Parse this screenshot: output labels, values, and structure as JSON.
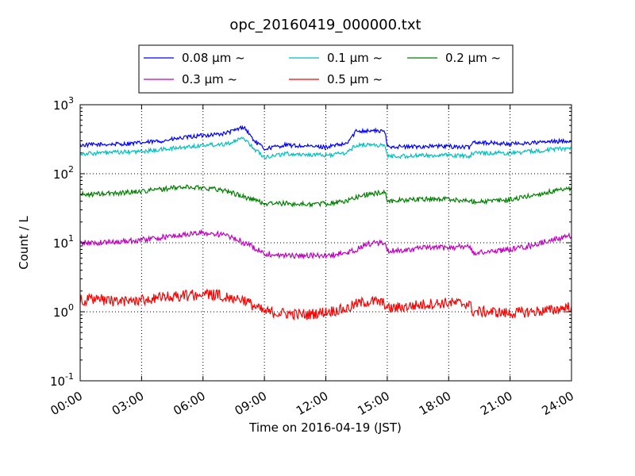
{
  "chart_data": {
    "type": "line",
    "title": "opc_20160419_000000.txt",
    "xlabel": "Time on 2016-04-19 (JST)",
    "ylabel": "Count / L",
    "yscale": "log",
    "ylim": [
      0.1,
      1000
    ],
    "xlim_hours": [
      0,
      24
    ],
    "grid": true,
    "legend_location": "top, above plot",
    "x_ticks": [
      "00:00",
      "03:00",
      "06:00",
      "09:00",
      "12:00",
      "15:00",
      "18:00",
      "21:00",
      "24:00"
    ],
    "y_ticks": [
      {
        "base": "10",
        "exp": "-1"
      },
      {
        "base": "10",
        "exp": "0"
      },
      {
        "base": "10",
        "exp": "1"
      },
      {
        "base": "10",
        "exp": "2"
      },
      {
        "base": "10",
        "exp": "3"
      }
    ],
    "x_hours": [
      0,
      1,
      2,
      3,
      4,
      5,
      6,
      7,
      7.5,
      8,
      8.5,
      9,
      10,
      11,
      12,
      13,
      13.5,
      14,
      14.5,
      14.9,
      15,
      16,
      17,
      18,
      19,
      19.2,
      20,
      21,
      22,
      23,
      24
    ],
    "series": [
      {
        "name": "0.08 μm ~",
        "color": "#0000ff",
        "noise": 0.03,
        "values": [
          260,
          265,
          270,
          280,
          300,
          330,
          360,
          380,
          420,
          480,
          300,
          230,
          260,
          250,
          245,
          270,
          420,
          420,
          420,
          400,
          250,
          245,
          250,
          250,
          240,
          290,
          280,
          270,
          280,
          290,
          300
        ]
      },
      {
        "name": "0.1 μm ~",
        "color": "#00bfbf",
        "noise": 0.03,
        "values": [
          195,
          200,
          205,
          210,
          225,
          240,
          260,
          270,
          290,
          330,
          230,
          175,
          195,
          190,
          185,
          200,
          260,
          265,
          260,
          255,
          180,
          180,
          185,
          185,
          180,
          200,
          200,
          200,
          210,
          225,
          235
        ]
      },
      {
        "name": "0.2 μm ~",
        "color": "#008000",
        "noise": 0.035,
        "values": [
          50,
          51,
          53,
          56,
          60,
          64,
          63,
          58,
          52,
          46,
          42,
          37,
          37,
          36,
          37,
          40,
          46,
          50,
          52,
          55,
          40,
          42,
          43,
          43,
          40,
          40,
          40,
          42,
          48,
          55,
          60
        ]
      },
      {
        "name": "0.3 μm ~",
        "color": "#bf00bf",
        "noise": 0.04,
        "values": [
          10,
          10,
          10.5,
          11,
          12,
          13,
          14,
          13,
          11.5,
          10,
          8.5,
          7,
          6.5,
          6.5,
          6.5,
          7,
          8,
          9.5,
          10,
          10,
          7.5,
          8,
          8.5,
          8.5,
          9,
          7,
          7.5,
          8,
          9,
          11,
          12.5
        ]
      },
      {
        "name": "0.5 μm ~",
        "color": "#ff0000",
        "noise": 0.08,
        "values": [
          1.5,
          1.5,
          1.4,
          1.5,
          1.6,
          1.7,
          1.8,
          1.7,
          1.6,
          1.5,
          1.2,
          1.0,
          0.95,
          0.9,
          1.0,
          1.1,
          1.3,
          1.4,
          1.4,
          1.3,
          1.1,
          1.2,
          1.3,
          1.35,
          1.3,
          1.0,
          1.0,
          0.95,
          1.0,
          1.05,
          1.2
        ]
      }
    ]
  }
}
